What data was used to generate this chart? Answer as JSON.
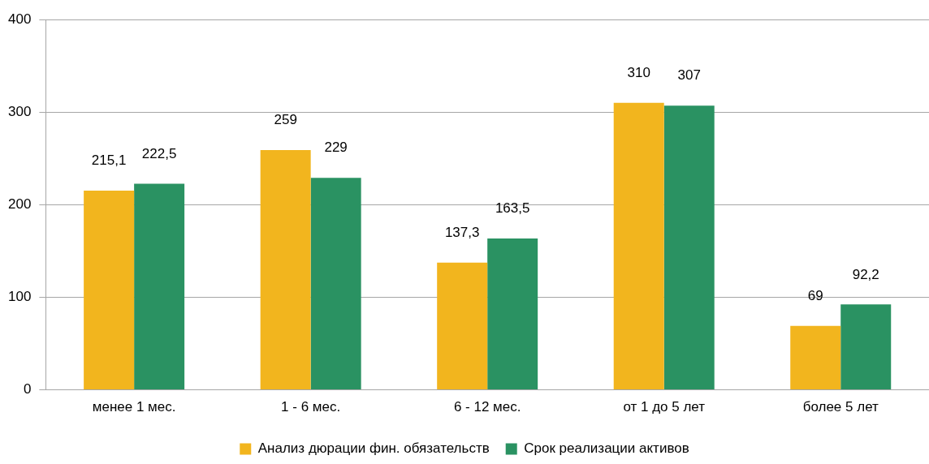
{
  "chart_data": {
    "type": "bar",
    "categories": [
      "менее 1 мес.",
      "1 - 6 мес.",
      "6 - 12 мес.",
      "от 1 до 5 лет",
      "более 5 лет"
    ],
    "series": [
      {
        "name": "Анализ дюрации фин. обязательств",
        "color": "#f2b51e",
        "values": [
          215.1,
          259,
          137.3,
          310,
          69
        ],
        "value_labels": [
          "215,1",
          "259",
          "137,3",
          "310",
          "69"
        ]
      },
      {
        "name": "Срок реализации активов",
        "color": "#2a9262",
        "values": [
          222.5,
          229,
          163.5,
          307,
          92.2
        ],
        "value_labels": [
          "222,5",
          "229",
          "163,5",
          "307",
          "92,2"
        ]
      }
    ],
    "ylim": [
      0,
      400
    ],
    "yticks": [
      0,
      100,
      200,
      300,
      400
    ],
    "grid": "y",
    "legend": "bottom"
  }
}
